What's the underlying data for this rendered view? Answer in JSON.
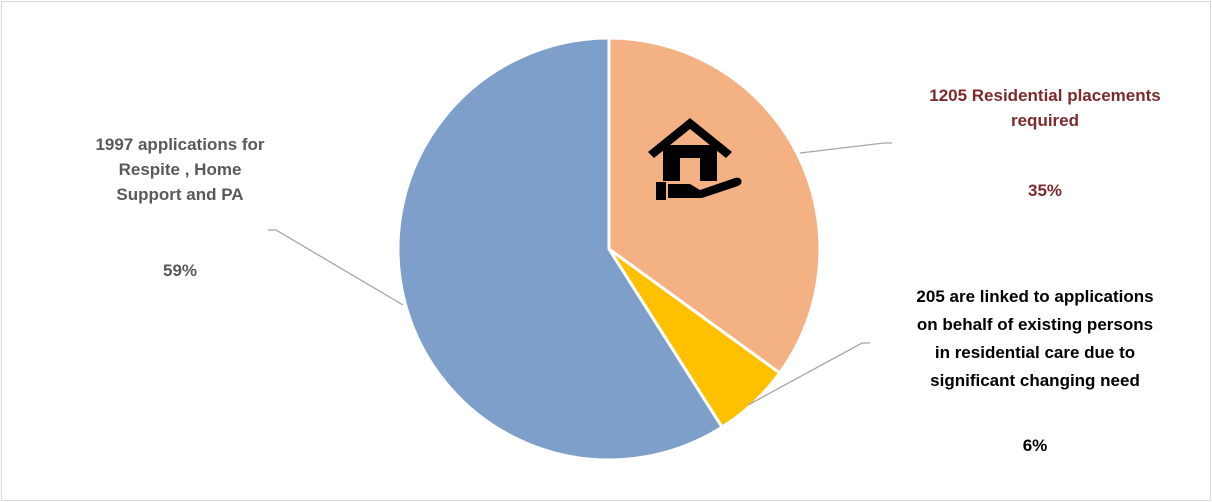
{
  "chart_data": {
    "type": "pie",
    "categories": [
      "1205 Residential placements\nrequired",
      "205 are linked to applications\non behalf of existing persons\nin residential care due to\nsignificant changing need",
      "1997 applications for\nRespite , Home\nSupport and PA"
    ],
    "values": [
      35,
      6,
      59
    ],
    "value_labels": [
      "35%",
      "6%",
      "59%"
    ],
    "colors": [
      "#F4B183",
      "#FFC000",
      "#7F9FCB"
    ],
    "label_colors": [
      "#7B2B2B",
      "#000000",
      "#595959"
    ]
  }
}
